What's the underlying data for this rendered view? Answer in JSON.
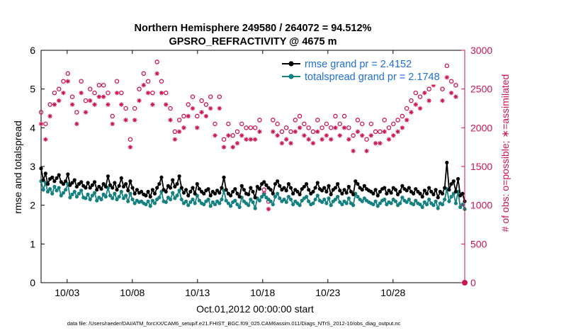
{
  "chart_data": {
    "type": "line",
    "title": "Northern Hemisphere 249580 / 264072 = 94.512%",
    "subtitle": "GPSRO_REFRACTIVITY @ 4675 m",
    "xlabel": "Oct.01,2012 00:00:00 start",
    "ylabel": "rmse and totalspread",
    "y2label": "# of obs: o=possible; ∗=assimilated",
    "footnote": "data file: /Users/raeder/DAI/ATM_forcXX/CAM6_setup/f.e21.FHIST_BGC.f09_025.CAM6assim.011/Diags_NTrS_2012-10/obs_diag_output.nc",
    "xlim": [
      1,
      33.5
    ],
    "ylim": [
      0,
      6
    ],
    "y2lim": [
      0,
      3000
    ],
    "xticks": [
      3,
      8,
      13,
      18,
      23,
      28
    ],
    "xtick_labels": [
      "10/03",
      "10/08",
      "10/13",
      "10/18",
      "10/23",
      "10/28"
    ],
    "yticks": [
      "0",
      "1",
      "2",
      "3",
      "4",
      "5",
      "6"
    ],
    "y2ticks": [
      "0",
      "500",
      "1000",
      "1500",
      "2000",
      "2500",
      "3000"
    ],
    "legend_position": "top-right",
    "colors": {
      "rmse": "#000000",
      "spread": "#148080",
      "obs": "#cc1458",
      "legend_text": "#1e6fd8"
    },
    "series": [
      {
        "name": "rmse grand pr = 2.4152",
        "axis": "left",
        "marker": "filled-circle",
        "values": [
          2.95,
          2.65,
          2.82,
          2.55,
          2.68,
          2.72,
          2.62,
          2.7,
          2.78,
          2.6,
          2.55,
          2.62,
          2.8,
          2.52,
          2.58,
          2.65,
          2.48,
          2.55,
          2.6,
          2.5,
          2.45,
          2.58,
          2.45,
          2.52,
          2.6,
          2.4,
          2.48,
          2.42,
          2.55,
          2.48,
          2.75,
          2.52,
          2.45,
          2.58,
          2.4,
          2.5,
          2.7,
          2.48,
          2.55,
          2.38,
          2.62,
          2.45,
          2.3,
          2.4,
          2.32,
          2.35,
          2.28,
          2.25,
          2.35,
          2.22,
          2.4,
          2.3,
          2.45,
          2.55,
          2.72,
          2.4,
          2.35,
          2.5,
          2.45,
          2.65,
          2.48,
          2.55,
          2.75,
          2.45,
          2.32,
          2.4,
          2.25,
          2.35,
          2.45,
          2.3,
          2.55,
          2.42,
          2.35,
          2.3,
          2.38,
          2.42,
          2.25,
          2.35,
          2.3,
          2.38,
          2.32,
          2.45,
          2.72,
          2.4,
          2.3,
          2.25,
          2.35,
          2.42,
          2.3,
          2.22,
          2.5,
          2.4,
          2.3,
          2.28,
          2.45,
          2.35,
          2.2,
          2.48,
          2.42,
          2.55,
          2.6,
          2.52,
          2.45,
          2.4,
          2.3,
          2.55,
          2.62,
          2.5,
          2.4,
          2.45,
          2.38,
          2.55,
          2.45,
          2.3,
          2.4,
          2.35,
          2.28,
          2.42,
          2.48,
          2.55,
          2.4,
          2.3,
          2.35,
          2.45,
          2.58,
          2.42,
          2.38,
          2.45,
          2.35,
          2.5,
          2.28,
          2.4,
          2.45,
          2.55,
          2.38,
          2.3,
          2.4,
          2.32,
          2.48,
          2.35,
          2.28,
          2.62,
          2.55,
          2.45,
          2.4,
          2.5,
          2.42,
          2.38,
          2.35,
          2.3,
          2.4,
          2.25,
          2.35,
          2.42,
          2.45,
          2.3,
          2.38,
          2.32,
          2.45,
          2.4,
          2.28,
          2.35,
          2.5,
          2.42,
          2.38,
          2.45,
          2.35,
          2.3,
          2.42,
          2.35,
          2.3,
          2.22,
          2.38,
          2.3,
          2.45,
          2.35,
          2.28,
          2.4,
          2.2,
          2.35,
          2.3,
          2.45,
          3.1,
          2.4,
          2.55,
          2.62,
          2.35,
          2.68,
          2.25,
          2.3,
          2.1
        ]
      },
      {
        "name": "totalspread grand pr = 2.1748",
        "axis": "left",
        "marker": "filled-circle",
        "values": [
          2.62,
          2.4,
          2.58,
          2.35,
          2.42,
          2.3,
          2.48,
          2.38,
          2.45,
          2.25,
          2.32,
          2.4,
          2.55,
          2.2,
          2.28,
          2.35,
          2.22,
          2.3,
          2.38,
          2.2,
          2.18,
          2.28,
          2.15,
          2.25,
          2.32,
          2.12,
          2.2,
          2.15,
          2.28,
          2.22,
          2.45,
          2.25,
          2.18,
          2.3,
          2.15,
          2.22,
          2.35,
          2.18,
          2.25,
          2.1,
          2.3,
          2.15,
          2.05,
          2.12,
          2.08,
          2.1,
          2.05,
          2.02,
          2.1,
          1.98,
          2.12,
          2.05,
          2.15,
          2.2,
          2.35,
          2.1,
          2.08,
          2.2,
          2.15,
          2.32,
          2.18,
          2.25,
          2.38,
          2.15,
          2.05,
          2.1,
          2.0,
          2.08,
          2.15,
          2.05,
          2.25,
          2.12,
          2.05,
          2.02,
          2.1,
          2.15,
          1.98,
          2.08,
          2.02,
          2.1,
          2.05,
          2.15,
          2.38,
          2.12,
          2.05,
          1.98,
          2.08,
          2.12,
          2.02,
          1.95,
          2.2,
          2.1,
          2.05,
          2.0,
          2.15,
          2.08,
          1.92,
          2.18,
          2.12,
          2.22,
          2.28,
          2.2,
          2.15,
          2.1,
          2.02,
          2.22,
          2.3,
          2.18,
          2.1,
          2.15,
          2.08,
          2.22,
          2.15,
          2.02,
          2.1,
          2.05,
          2.0,
          2.12,
          2.18,
          2.22,
          2.1,
          2.02,
          2.05,
          2.15,
          2.25,
          2.12,
          2.08,
          2.15,
          2.05,
          2.18,
          2.0,
          2.1,
          2.15,
          2.22,
          2.08,
          2.02,
          2.1,
          2.05,
          2.18,
          2.05,
          2.0,
          2.3,
          2.22,
          2.15,
          2.1,
          2.18,
          2.12,
          2.08,
          2.05,
          2.02,
          2.1,
          1.98,
          2.05,
          2.12,
          2.15,
          2.02,
          2.08,
          2.05,
          2.15,
          2.1,
          2.0,
          2.05,
          2.2,
          2.12,
          2.08,
          2.15,
          2.05,
          2.02,
          2.12,
          2.05,
          2.02,
          1.95,
          2.08,
          2.02,
          2.15,
          2.05,
          2.0,
          2.1,
          1.92,
          2.05,
          2.02,
          2.15,
          2.42,
          2.1,
          2.22,
          2.3,
          2.05,
          2.35,
          1.95,
          2.02,
          1.9
        ]
      },
      {
        "name": "obs possible",
        "axis": "right",
        "marker": "open-circle",
        "values": [
          2200,
          1950,
          2050,
          1700,
          2300,
          2400,
          2450,
          2350,
          2500,
          2400,
          2600,
          2750,
          2700,
          2550,
          2400,
          2650,
          2200,
          2300,
          2600,
          2450,
          2350,
          2400,
          2500,
          2550,
          2450,
          2650,
          2550,
          2450,
          2550,
          2500,
          2450,
          2400,
          2150,
          2300,
          2600,
          2550,
          2450,
          2300,
          2250,
          2200,
          1850,
          1800,
          2250,
          2350,
          2500,
          2650,
          2700,
          2800,
          2600,
          2350,
          2450,
          2500,
          2850,
          2750,
          2600,
          2650,
          2450,
          2400,
          2250,
          2150,
          1950,
          2000,
          2100,
          2050,
          2150,
          2200,
          2300,
          2250,
          2400,
          2350,
          2150,
          2200,
          2350,
          2250,
          2300,
          2450,
          2400,
          2200,
          2050,
          2300,
          2400,
          2000,
          1850,
          1950,
          2050,
          2150,
          1900,
          2100,
          1950,
          1950,
          2050,
          1900,
          2000,
          2100,
          2000,
          2150,
          2000,
          1850,
          2100,
          2050,
          1200,
          1100,
          1050,
          2000,
          2100,
          1900,
          2050,
          2200,
          1950,
          2100,
          2000,
          1900,
          1950,
          2050,
          2100,
          2000,
          2150,
          2200,
          2050,
          1950,
          2000,
          2100,
          1950,
          2050,
          2100,
          2150,
          2000,
          1950,
          2050,
          1950,
          2000,
          2050,
          2150,
          2100,
          2050,
          2000,
          2150,
          2050,
          2000,
          1950,
          1900,
          1950,
          2100,
          2000,
          2050,
          2000,
          1850,
          1900,
          2050,
          2000,
          1950,
          2000,
          1950,
          2050,
          2100,
          2150,
          2000,
          1950,
          2050,
          2000,
          2100,
          2000,
          2150,
          2200,
          2250,
          2400,
          2350,
          2500,
          2450,
          2550,
          2400,
          2450,
          2600,
          2650,
          2500,
          2600,
          2700,
          2650,
          2750,
          2600,
          2500,
          2700,
          2800,
          2650,
          2600,
          2700,
          2550
        ]
      },
      {
        "name": "obs assimilated",
        "axis": "right",
        "marker": "asterisk",
        "values": [
          2050,
          1900,
          1850,
          1650,
          2150,
          2250,
          2300,
          2200,
          2350,
          2250,
          2450,
          2650,
          2600,
          2450,
          2300,
          2500,
          2050,
          2150,
          2450,
          2300,
          2200,
          2250,
          2350,
          2400,
          2300,
          2500,
          2400,
          2300,
          2400,
          2350,
          2300,
          2250,
          2050,
          2150,
          2450,
          2400,
          2300,
          2150,
          2100,
          2050,
          1750,
          1700,
          2100,
          2200,
          2350,
          2500,
          2550,
          2650,
          2450,
          2200,
          2300,
          2350,
          2700,
          2600,
          2450,
          2500,
          2300,
          2250,
          2100,
          2000,
          1850,
          1900,
          1950,
          1900,
          2000,
          2050,
          2150,
          2100,
          2250,
          2200,
          2000,
          2050,
          2200,
          2100,
          2150,
          2300,
          2250,
          2050,
          1900,
          2150,
          2250,
          1850,
          1750,
          1800,
          1900,
          2000,
          1750,
          1950,
          1800,
          1800,
          1900,
          1750,
          1850,
          1950,
          1850,
          2000,
          1850,
          1700,
          1950,
          1900,
          1150,
          1000,
          950,
          1850,
          1950,
          1750,
          1900,
          2050,
          1800,
          1950,
          1850,
          1750,
          1800,
          1900,
          1950,
          1850,
          2000,
          2050,
          1900,
          1800,
          1850,
          1950,
          1800,
          1900,
          1950,
          2000,
          1850,
          1800,
          1900,
          1800,
          1850,
          1900,
          2000,
          1950,
          1900,
          1850,
          2000,
          1900,
          1850,
          1800,
          1700,
          1800,
          1950,
          1850,
          1900,
          1850,
          1700,
          1750,
          1900,
          1850,
          1800,
          1850,
          1800,
          1900,
          1950,
          2000,
          1850,
          1800,
          1900,
          1850,
          1950,
          1850,
          2000,
          2050,
          2100,
          2250,
          2200,
          2350,
          2300,
          2400,
          2250,
          2300,
          2450,
          2500,
          2350,
          2450,
          2550,
          2500,
          2600,
          2450,
          2350,
          2550,
          2650,
          2500,
          2450,
          2550,
          2400
        ]
      }
    ]
  }
}
